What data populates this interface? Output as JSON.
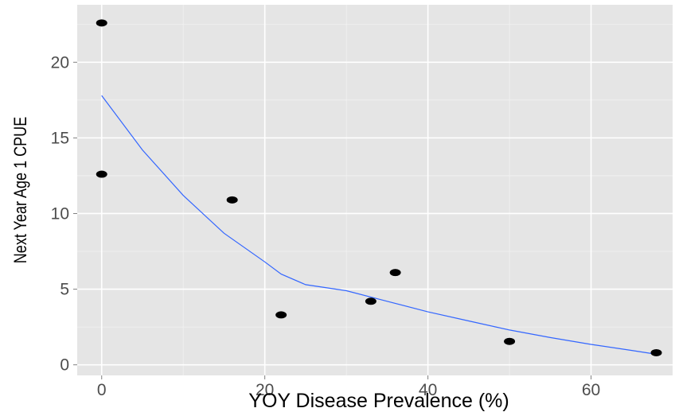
{
  "chart_data": {
    "type": "scatter",
    "xlabel": "YOY Disease Prevalence (%)",
    "ylabel": "Next Year Age 1 CPUE",
    "xlim": [
      -3,
      70
    ],
    "ylim": [
      -0.7,
      23.8
    ],
    "x_ticks": [
      0,
      20,
      40,
      60
    ],
    "y_ticks": [
      0,
      5,
      10,
      15,
      20
    ],
    "x_tick_labels": [
      "0",
      "20",
      "40",
      "60"
    ],
    "y_tick_labels": [
      "0",
      "5",
      "10",
      "15",
      "20"
    ],
    "grid": true,
    "legend": "none",
    "points": [
      {
        "x": 0,
        "y": 22.6
      },
      {
        "x": 0,
        "y": 12.6
      },
      {
        "x": 16,
        "y": 10.9
      },
      {
        "x": 22,
        "y": 3.3
      },
      {
        "x": 33,
        "y": 4.2
      },
      {
        "x": 36,
        "y": 6.1
      },
      {
        "x": 50,
        "y": 1.55
      },
      {
        "x": 68,
        "y": 0.8
      }
    ],
    "smooth_line": {
      "x": [
        0,
        5,
        10,
        15,
        20,
        22,
        25,
        30,
        35,
        40,
        45,
        50,
        55,
        60,
        65,
        68
      ],
      "y": [
        17.8,
        14.2,
        11.2,
        8.7,
        6.8,
        6.0,
        5.3,
        4.9,
        4.2,
        3.5,
        2.9,
        2.3,
        1.8,
        1.35,
        0.95,
        0.7
      ]
    },
    "colors": {
      "panel_background": "#e5e5e5",
      "grid_major": "#ffffff",
      "grid_minor": "#f2f2f2",
      "points": "#000000",
      "smooth_line": "#3366ff",
      "tick_label": "#4d4d4d",
      "axis_title": "#000000"
    }
  }
}
